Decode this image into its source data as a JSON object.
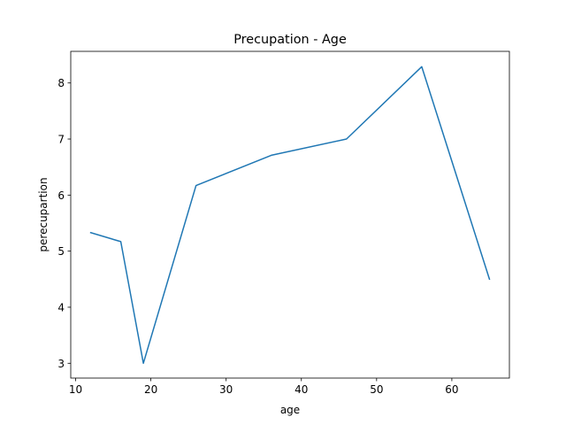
{
  "chart_data": {
    "type": "line",
    "title": "Precupation - Age",
    "xlabel": "age",
    "ylabel": "perecupartion",
    "xlim": [
      9.35,
      67.65
    ],
    "ylim": [
      2.736,
      8.564
    ],
    "xticks": [
      10,
      20,
      30,
      40,
      50,
      60
    ],
    "yticks": [
      3,
      4,
      5,
      6,
      7,
      8
    ],
    "grid": false,
    "line_color": "#1f77b4",
    "series": [
      {
        "x": [
          12,
          16,
          19,
          26,
          36,
          46,
          56,
          65
        ],
        "y": [
          5.33,
          5.17,
          3.0,
          6.17,
          6.71,
          7.0,
          8.29,
          4.5
        ]
      }
    ]
  }
}
